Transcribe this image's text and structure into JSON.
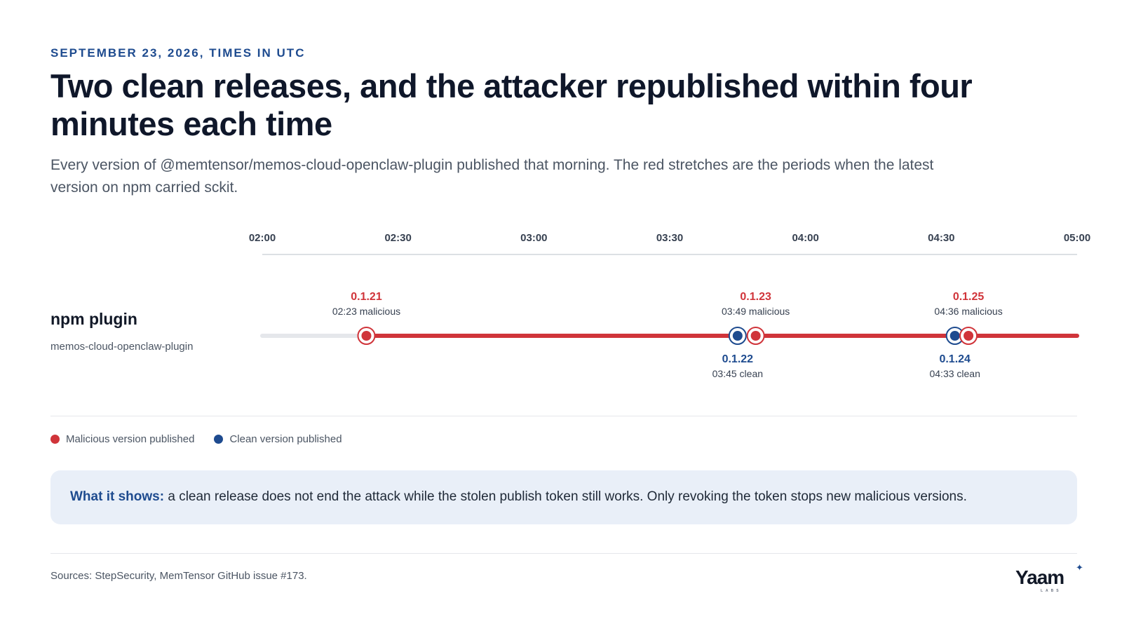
{
  "header": {
    "eyebrow": "SEPTEMBER 23, 2026, TIMES IN UTC",
    "title": "Two clean releases, and the attacker republished within four minutes each time",
    "subtitle": "Every version of @memtensor/memos-cloud-openclaw-plugin published that morning. The red stretches are the periods when the latest version on npm carried sckit."
  },
  "row": {
    "label": "npm plugin",
    "sublabel": "memos-cloud-openclaw-plugin"
  },
  "chart_data": {
    "type": "timeline",
    "axis": {
      "start": "02:00",
      "end": "05:00",
      "ticks": [
        "02:00",
        "02:30",
        "03:00",
        "03:30",
        "04:00",
        "04:30",
        "05:00"
      ]
    },
    "events": [
      {
        "version": "0.1.21",
        "time": "02:23",
        "status": "malicious",
        "caption": "02:23 malicious"
      },
      {
        "version": "0.1.22",
        "time": "03:45",
        "status": "clean",
        "caption": "03:45 clean"
      },
      {
        "version": "0.1.23",
        "time": "03:49",
        "status": "malicious",
        "caption": "03:49 malicious"
      },
      {
        "version": "0.1.24",
        "time": "04:33",
        "status": "clean",
        "caption": "04:33 clean"
      },
      {
        "version": "0.1.25",
        "time": "04:36",
        "status": "malicious",
        "caption": "04:36 malicious"
      }
    ],
    "colors": {
      "malicious": "#d0343a",
      "clean": "#1e4b8f",
      "inactive": "#e5e7eb",
      "axis": "#d1d5db"
    }
  },
  "legend": {
    "malicious": "Malicious version published",
    "clean": "Clean version published"
  },
  "callout": {
    "lead": "What it shows:",
    "text": "a clean release does not end the attack while the stolen publish token still works. Only revoking the token stops new malicious versions."
  },
  "footer": {
    "sources": "Sources: StepSecurity, MemTensor GitHub issue #173.",
    "logo": "Yaam",
    "logo_sub": "LABS"
  }
}
